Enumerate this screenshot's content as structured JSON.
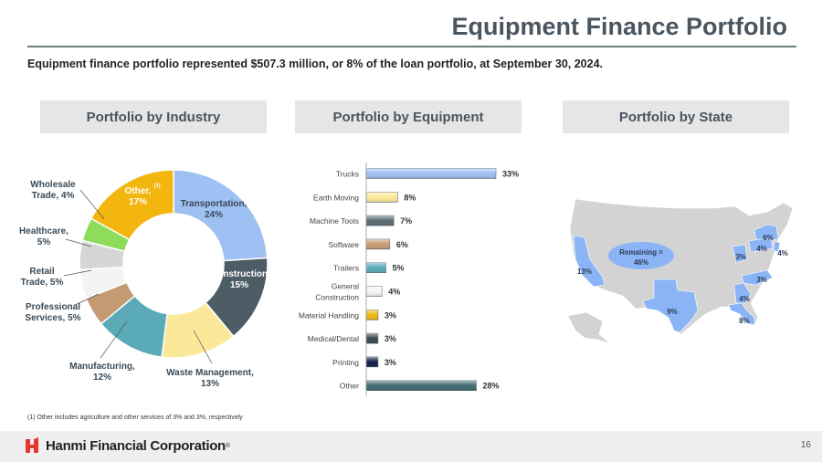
{
  "header": {
    "title": "Equipment Finance Portfolio",
    "subtitle": "Equipment finance portfolio represented $507.3 million, or 8% of the loan portfolio, at September 30, 2024."
  },
  "sections": {
    "industry": "Portfolio by Industry",
    "equipment": "Portfolio by Equipment",
    "state": "Portfolio by State"
  },
  "chart_data": [
    {
      "type": "pie",
      "title": "Portfolio by Industry",
      "slices": [
        {
          "label": "Transportation, 24%",
          "value": 24,
          "color": "#9fc0f2"
        },
        {
          "label": "Construction 15%",
          "value": 15,
          "color": "#4d5d66"
        },
        {
          "label": "Waste Management, 13%",
          "value": 13,
          "color": "#fbe899"
        },
        {
          "label": "Manufacturing, 12%",
          "value": 12,
          "color": "#5aaab8"
        },
        {
          "label": "Professional Services, 5%",
          "value": 5,
          "color": "#c49a72"
        },
        {
          "label": "Retail Trade, 5%",
          "value": 5,
          "color": "#f4f4f4"
        },
        {
          "label": "Healthcare, 5%",
          "value": 5,
          "color": "#d6d6d6"
        },
        {
          "label": "Wholesale Trade, 4%",
          "value": 4,
          "color": "#8edc5a"
        },
        {
          "label": "Other, 17%",
          "value": 17,
          "color": "#f2b60f"
        }
      ],
      "other_note_marker": "(1)"
    },
    {
      "type": "bar",
      "title": "Portfolio by Equipment",
      "orientation": "horizontal",
      "categories": [
        "Trucks",
        "Earth Moving",
        "Machine Tools",
        "Software",
        "Trailers",
        "General Construction",
        "Material Handling",
        "Medical/Dental",
        "Printing",
        "Other"
      ],
      "values": [
        33,
        8,
        7,
        6,
        5,
        4,
        3,
        3,
        3,
        28
      ],
      "value_labels": [
        "33%",
        "8%",
        "7%",
        "6%",
        "5%",
        "4%",
        "3%",
        "3%",
        "3%",
        "28%"
      ],
      "colors": [
        "#9fc0f2",
        "#fbe899",
        "#5d6c73",
        "#c49a72",
        "#5aaab8",
        "#f4f4f4",
        "#f2b60f",
        "#3a4950",
        "#0f1f4a",
        "#3f6a70"
      ],
      "xlim": [
        0,
        33
      ]
    },
    {
      "type": "map",
      "title": "Portfolio by State",
      "highlight_color": "#8ab4f5",
      "base_color": "#d3d3d3",
      "labels": [
        {
          "state": "CA",
          "label": "13%"
        },
        {
          "state": "TX",
          "label": "9%"
        },
        {
          "state": "FL",
          "label": "8%"
        },
        {
          "state": "GA",
          "label": "4%"
        },
        {
          "state": "NC",
          "label": "3%"
        },
        {
          "state": "OH",
          "label": "3%"
        },
        {
          "state": "PA",
          "label": "4%"
        },
        {
          "state": "NY",
          "label": "6%"
        },
        {
          "state": "NJ",
          "label": "4%"
        },
        {
          "state": "Remaining",
          "label": "Remaining = 46%"
        }
      ]
    }
  ],
  "footnote": "(1)    Other includes agriculture and other services of 3% and 3%, respectively",
  "footer": {
    "company": "Hanmi Financial Corporation",
    "trademark": "®",
    "page": "16",
    "brand_color": "#e03a2f"
  }
}
